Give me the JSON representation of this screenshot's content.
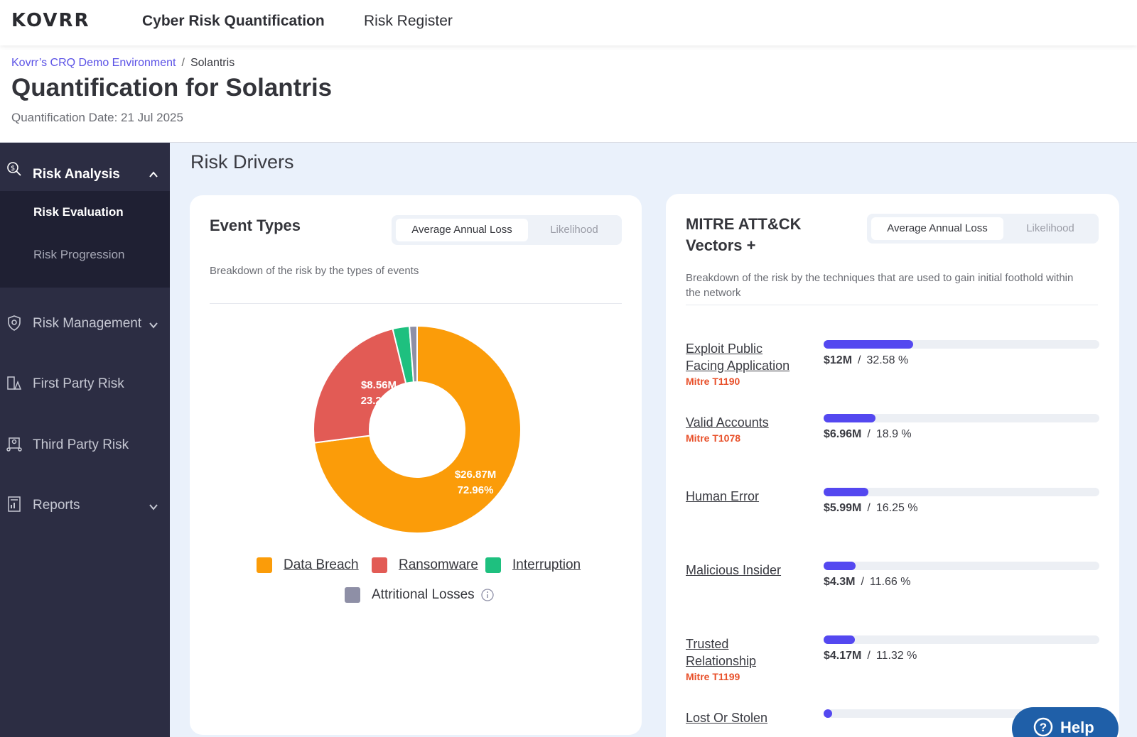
{
  "brand": {
    "logo": "KOVRR"
  },
  "topnav": {
    "items": [
      "Cyber Risk Quantification",
      "Risk Register"
    ]
  },
  "breadcrumb": {
    "root": "Kovrr’s CRQ Demo Environment",
    "separator": "/",
    "current": "Solantris"
  },
  "header": {
    "title": "Quantification for Solantris",
    "date": "Quantification Date: 21 Jul 2025"
  },
  "sidebar": {
    "risk_analysis": {
      "label": "Risk Analysis",
      "sub": [
        "Risk Evaluation",
        "Risk Progression"
      ]
    },
    "items": [
      "Risk Management",
      "First Party Risk",
      "Third Party Risk",
      "Reports"
    ]
  },
  "main": {
    "section_title": "Risk Drivers"
  },
  "event_types": {
    "title": "Event Types",
    "toggle": [
      "Average Annual Loss",
      "Likelihood"
    ],
    "description": "Breakdown of the risk by the types of events",
    "legend": [
      "Data Breach",
      "Ransomware",
      "Interruption",
      "Attritional Losses"
    ],
    "slice_labels": {
      "data_breach_value": "$26.87M",
      "data_breach_pct": "72.96%",
      "ransomware_value": "$8.56M",
      "ransomware_pct": "23.25%"
    }
  },
  "chart_data": {
    "type": "pie",
    "categories": [
      "Data Breach",
      "Ransomware",
      "Interruption",
      "Attritional Losses"
    ],
    "values": [
      72.96,
      23.25,
      2.6,
      1.19
    ],
    "colors": [
      "#fb9c09",
      "#e25b55",
      "#1ec07f",
      "#8e8fa6"
    ]
  },
  "mitre": {
    "title_line1": "MITRE ATT&CK",
    "title_line2": "Vectors +",
    "toggle": [
      "Average Annual Loss",
      "Likelihood"
    ],
    "description_line1": "Breakdown of the risk by the techniques that are used to gain initial foothold within",
    "description_line2": "the network",
    "vectors": [
      {
        "name_line1": "Exploit Public",
        "name_line2": "Facing Application",
        "code": "Mitre T1190",
        "value": "$12M",
        "percent": "32.58 %",
        "fraction": 0.3258
      },
      {
        "name_line1": "Valid Accounts",
        "name_line2": "",
        "code": "Mitre T1078",
        "value": "$6.96M",
        "percent": "18.9 %",
        "fraction": 0.189
      },
      {
        "name_line1": "Human Error",
        "name_line2": "",
        "code": "",
        "value": "$5.99M",
        "percent": "16.25 %",
        "fraction": 0.1625
      },
      {
        "name_line1": "Malicious Insider",
        "name_line2": "",
        "code": "",
        "value": "$4.3M",
        "percent": "11.66 %",
        "fraction": 0.1166
      },
      {
        "name_line1": "Trusted",
        "name_line2": "Relationship",
        "code": "Mitre T1199",
        "value": "$4.17M",
        "percent": "11.32 %",
        "fraction": 0.1132
      },
      {
        "name_line1": "Lost Or Stolen",
        "name_line2": "",
        "code": "",
        "value": "",
        "percent": "",
        "fraction": 0.02
      }
    ]
  },
  "help": {
    "label": "Help"
  },
  "colors": {
    "accent": "#5448f0",
    "sidebar": "#2c2d43",
    "mitre_code": "#e8502a"
  }
}
